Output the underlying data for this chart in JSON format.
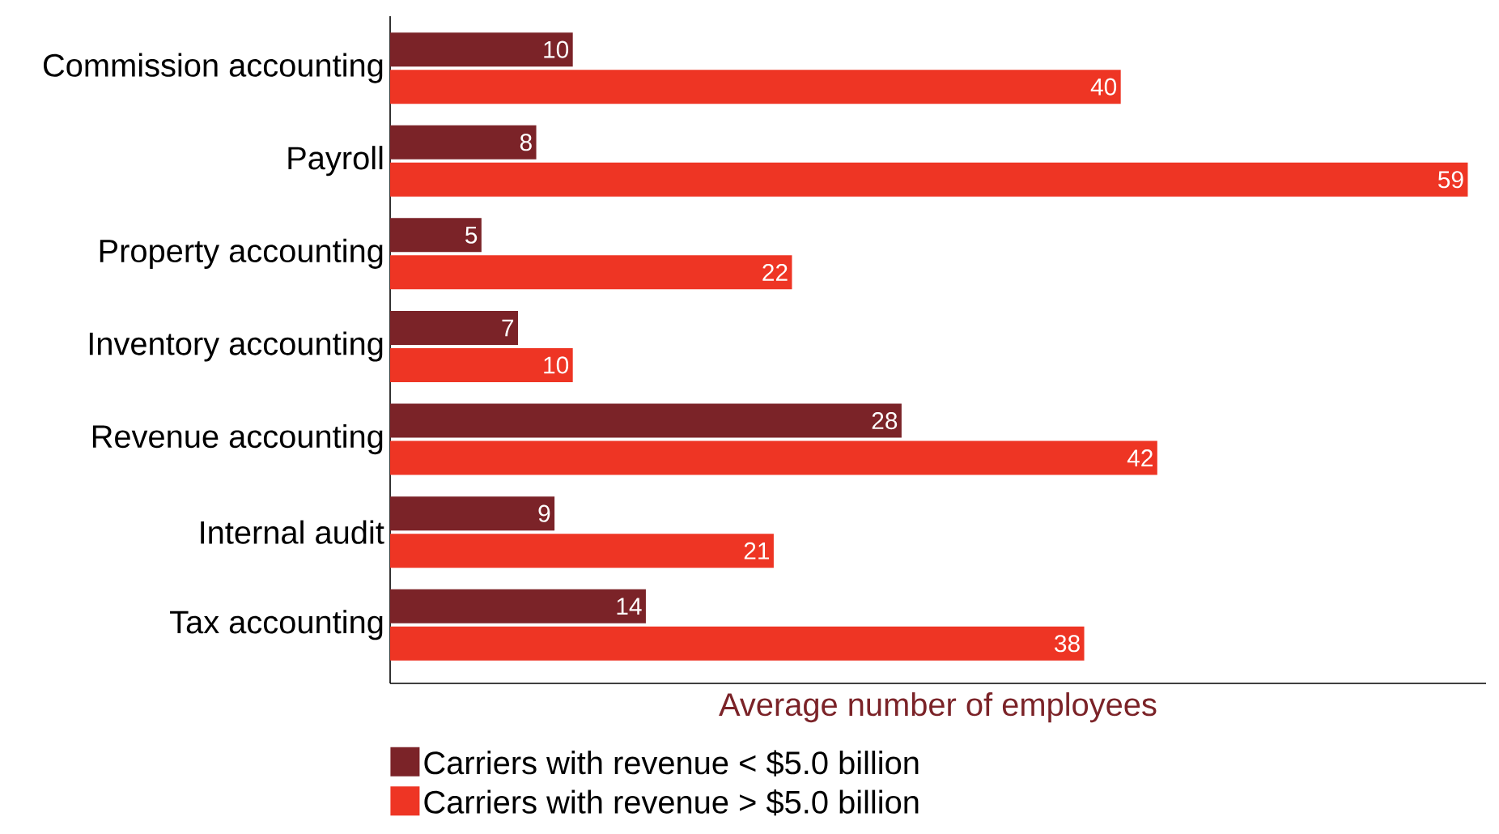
{
  "chart_data": {
    "type": "bar",
    "orientation": "horizontal",
    "categories": [
      "Commission accounting",
      "Payroll",
      "Property accounting",
      "Inventory accounting",
      "Revenue accounting",
      "Internal audit",
      "Tax accounting"
    ],
    "series": [
      {
        "name": "Carriers with revenue < $5.0 billion",
        "color": "#7b2328",
        "values": [
          10,
          8,
          5,
          7,
          28,
          9,
          14
        ]
      },
      {
        "name": "Carriers with revenue > $5.0 billion",
        "color": "#ee3524",
        "values": [
          40,
          59,
          22,
          10,
          42,
          21,
          38
        ]
      }
    ],
    "xlabel": "Average number of employees",
    "xlim": [
      0,
      60
    ],
    "data_labels": true,
    "tick_labels": "y",
    "legend": "bottom"
  }
}
